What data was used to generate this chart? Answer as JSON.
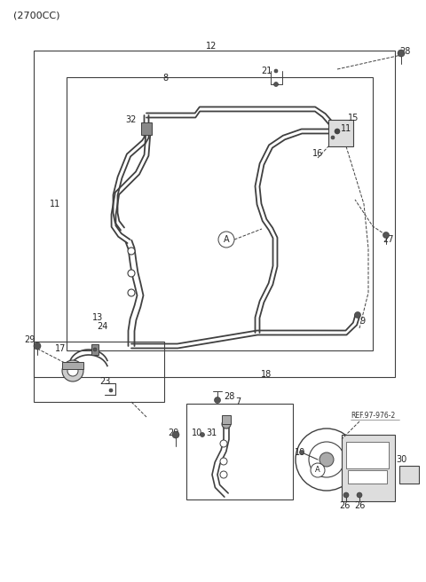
{
  "title": "(2700CC)",
  "bg": "#ffffff",
  "lc": "#404040",
  "figsize": [
    4.8,
    6.56
  ],
  "dpi": 100,
  "ref_text": "REF.97-976-2"
}
